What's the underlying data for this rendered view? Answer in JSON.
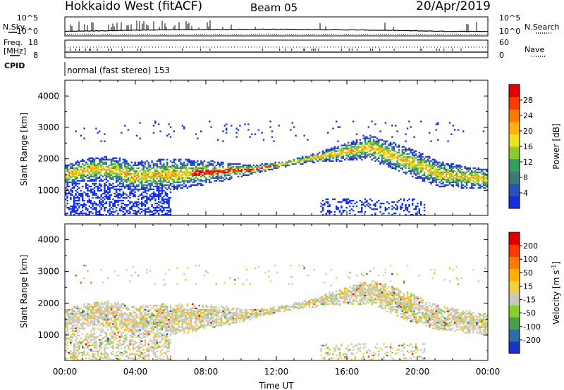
{
  "header": {
    "site": "Hokkaido West (fitACF)",
    "beam": "Beam 05",
    "date": "20/Apr/2019"
  },
  "top_panel": {
    "nsky_label": "N.Sky",
    "nsearch_label": "N.Search",
    "noise_ticks": [
      "10^5",
      "10^0"
    ],
    "freq_label_line1": "Freq.",
    "freq_label_line2": "[MHz]",
    "freq_ticks": [
      "18",
      "8"
    ],
    "nave_label": "Nave",
    "nave_ticks": [
      "60",
      "0"
    ],
    "cpid_label": "CPID",
    "cpid_text": "normal (fast stereo) 153"
  },
  "chart_data": [
    {
      "type": "heatmap",
      "name": "power",
      "ylabel": "Slant Range [km]",
      "y_ticks": [
        "1000",
        "2000",
        "3000",
        "4000"
      ],
      "ylim": [
        200,
        4500
      ],
      "colorbar_label": "Power [dB]",
      "colorbar_ticks": [
        "4",
        "8",
        "12",
        "16",
        "20",
        "24",
        "28"
      ],
      "colorbar_colors": [
        "#1230e0",
        "#2a52b8",
        "#3d7a7a",
        "#33a05a",
        "#8ccc2e",
        "#f0e020",
        "#ffb010",
        "#ff7a00",
        "#ff3a00",
        "#e50000"
      ]
    },
    {
      "type": "heatmap",
      "name": "velocity",
      "ylabel": "Slant Range [km]",
      "y_ticks": [
        "1000",
        "2000",
        "3000",
        "4000"
      ],
      "ylim": [
        200,
        4500
      ],
      "colorbar_label": "Velocity [m s",
      "colorbar_label_sup": "-1",
      "colorbar_label_end": "]",
      "colorbar_ticks": [
        "200",
        "100",
        "50",
        "15",
        "-15",
        "-50",
        "-100",
        "-200"
      ],
      "colorbar_colors": [
        "#1a32c8",
        "#2a6ea8",
        "#4aa048",
        "#86d030",
        "#c8c8c0",
        "#f0d040",
        "#ffb000",
        "#ff7a00",
        "#ff3800",
        "#e00000"
      ]
    }
  ],
  "x_axis": {
    "ticks": [
      "00:00",
      "04:00",
      "08:00",
      "12:00",
      "16:00",
      "20:00",
      "00:00"
    ],
    "label": "Time UT"
  }
}
